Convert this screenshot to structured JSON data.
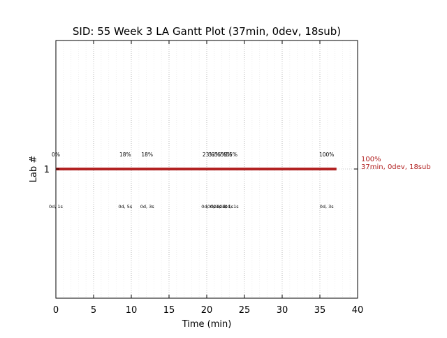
{
  "chart_data": {
    "type": "gantt",
    "title": "SID: 55 Week 3 LA Gantt Plot (37min, 0dev, 18sub)",
    "xlabel": "Time (min)",
    "ylabel": "Lab #",
    "xlim": [
      0,
      40
    ],
    "xticks": [
      "0",
      "5",
      "10",
      "15",
      "20",
      "25",
      "30",
      "35",
      "40"
    ],
    "yticks": [
      "1"
    ],
    "grid": true,
    "bar": {
      "lab": 1,
      "start": 0,
      "end": 37.2,
      "color": "#b22222"
    },
    "end_label": {
      "line1": "100%",
      "line2": "37min, 0dev, 18sub",
      "color": "#b22222"
    },
    "events": [
      {
        "x": 0.0,
        "pct": "0%",
        "sub": "0d, 1s"
      },
      {
        "x": 9.2,
        "pct": "18%",
        "sub": "0d, 5s"
      },
      {
        "x": 12.1,
        "pct": "18%",
        "sub": "0d, 3s"
      },
      {
        "x": 20.2,
        "pct": "23%",
        "sub": "0d, 0s"
      },
      {
        "x": 21.0,
        "pct": "33%",
        "sub": "0d, 1s"
      },
      {
        "x": 21.8,
        "pct": "35%",
        "sub": "0d, 1s"
      },
      {
        "x": 22.6,
        "pct": "55%",
        "sub": "0d, 1s"
      },
      {
        "x": 23.3,
        "pct": "55%",
        "sub": "0d, 1s"
      },
      {
        "x": 35.9,
        "pct": "100%",
        "sub": "0d, 3s"
      }
    ]
  }
}
